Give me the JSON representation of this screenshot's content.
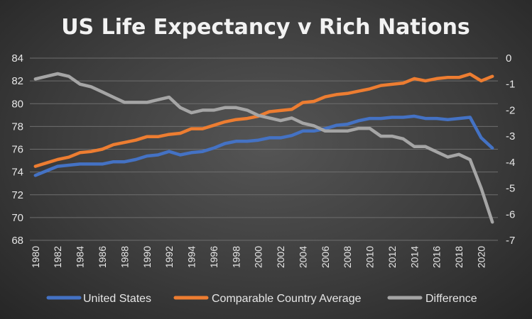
{
  "chart_data": {
    "type": "line",
    "title": "US Life Expectancy v Rich Nations",
    "x": [
      1980,
      1981,
      1982,
      1983,
      1984,
      1985,
      1986,
      1987,
      1988,
      1989,
      1990,
      1991,
      1992,
      1993,
      1994,
      1995,
      1996,
      1997,
      1998,
      1999,
      2000,
      2001,
      2002,
      2003,
      2004,
      2005,
      2006,
      2007,
      2008,
      2009,
      2010,
      2011,
      2012,
      2013,
      2014,
      2015,
      2016,
      2017,
      2018,
      2019,
      2020,
      2021
    ],
    "x_tick_labels": [
      "1980",
      "1982",
      "1984",
      "1986",
      "1988",
      "1990",
      "1992",
      "1994",
      "1996",
      "1998",
      "2000",
      "2002",
      "2004",
      "2006",
      "2008",
      "2010",
      "2012",
      "2014",
      "2016",
      "2018",
      "2020"
    ],
    "ylim": [
      68,
      84
    ],
    "y_ticks": [
      "68",
      "70",
      "72",
      "74",
      "76",
      "78",
      "80",
      "82",
      "84"
    ],
    "y2lim": [
      -7,
      0
    ],
    "y2_ticks": [
      "-7",
      "-6",
      "-5",
      "-4",
      "-3",
      "-2",
      "-1",
      "0"
    ],
    "grid": true,
    "legend_position": "bottom",
    "series": [
      {
        "name": "United States",
        "axis": "left",
        "color": "#4472c4",
        "values": [
          73.7,
          74.1,
          74.5,
          74.6,
          74.7,
          74.7,
          74.7,
          74.9,
          74.9,
          75.1,
          75.4,
          75.5,
          75.8,
          75.5,
          75.7,
          75.8,
          76.1,
          76.5,
          76.7,
          76.7,
          76.8,
          77.0,
          77.0,
          77.2,
          77.6,
          77.6,
          77.8,
          78.1,
          78.2,
          78.5,
          78.7,
          78.7,
          78.8,
          78.8,
          78.9,
          78.7,
          78.7,
          78.6,
          78.7,
          78.8,
          77.0,
          76.1
        ]
      },
      {
        "name": "Comparable Country Average",
        "axis": "left",
        "color": "#ed7d31",
        "values": [
          74.5,
          74.8,
          75.1,
          75.3,
          75.7,
          75.8,
          76.0,
          76.4,
          76.6,
          76.8,
          77.1,
          77.1,
          77.3,
          77.4,
          77.8,
          77.8,
          78.1,
          78.4,
          78.6,
          78.7,
          78.9,
          79.3,
          79.4,
          79.5,
          80.1,
          80.2,
          80.6,
          80.8,
          80.9,
          81.1,
          81.3,
          81.6,
          81.7,
          81.8,
          82.2,
          82.0,
          82.2,
          82.3,
          82.3,
          82.6,
          82.0,
          82.4
        ]
      },
      {
        "name": "Difference",
        "axis": "right",
        "color": "#a5a5a5",
        "values": [
          -0.8,
          -0.7,
          -0.6,
          -0.7,
          -1.0,
          -1.1,
          -1.3,
          -1.5,
          -1.7,
          -1.7,
          -1.7,
          -1.6,
          -1.5,
          -1.9,
          -2.1,
          -2.0,
          -2.0,
          -1.9,
          -1.9,
          -2.0,
          -2.2,
          -2.3,
          -2.4,
          -2.3,
          -2.5,
          -2.6,
          -2.8,
          -2.8,
          -2.8,
          -2.7,
          -2.7,
          -3.0,
          -3.0,
          -3.1,
          -3.4,
          -3.4,
          -3.6,
          -3.8,
          -3.7,
          -3.9,
          -5.0,
          -6.3
        ]
      }
    ]
  }
}
